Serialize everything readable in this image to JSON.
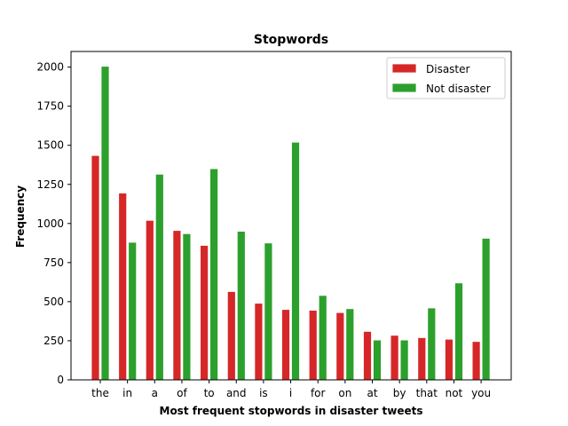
{
  "chart_data": {
    "type": "bar",
    "title": "Stopwords",
    "xlabel": "Most frequent stopwords in disaster tweets",
    "ylabel": "Frequency",
    "ylim": [
      0,
      2100
    ],
    "yticks": [
      0,
      250,
      500,
      750,
      1000,
      1250,
      1500,
      1750,
      2000
    ],
    "categories": [
      "the",
      "in",
      "a",
      "of",
      "to",
      "and",
      "is",
      "i",
      "for",
      "on",
      "at",
      "by",
      "that",
      "not",
      "you"
    ],
    "series": [
      {
        "name": "Disaster",
        "color": "#d62728",
        "values": [
          1435,
          1195,
          1020,
          955,
          860,
          565,
          490,
          450,
          445,
          430,
          310,
          285,
          270,
          260,
          245
        ]
      },
      {
        "name": "Not disaster",
        "color": "#2ca02c",
        "values": [
          2005,
          880,
          1315,
          935,
          1350,
          950,
          875,
          1520,
          540,
          455,
          255,
          255,
          460,
          620,
          905
        ]
      }
    ],
    "grid": false,
    "legend_position": "top-right"
  }
}
